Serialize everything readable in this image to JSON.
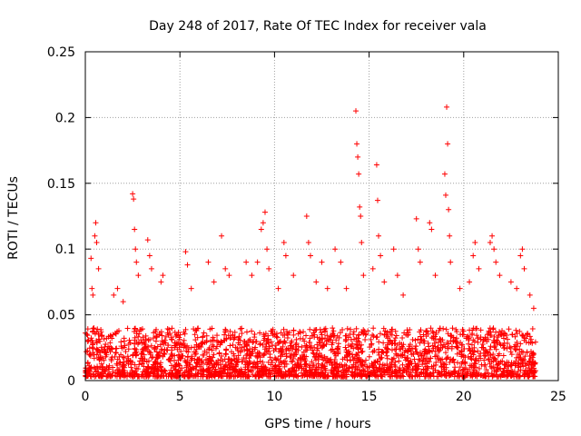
{
  "chart_data": {
    "type": "scatter",
    "title": "Day 248 of 2017, Rate Of TEC Index for receiver vala",
    "xlabel": "GPS time / hours",
    "ylabel": "ROTI / TECUs",
    "xlim": [
      0,
      25
    ],
    "ylim": [
      0,
      0.25
    ],
    "xticks": [
      0,
      5,
      10,
      15,
      20,
      25
    ],
    "yticks": [
      0,
      0.05,
      0.1,
      0.15,
      0.2,
      0.25
    ],
    "xtick_labels": [
      "0",
      "5",
      "10",
      "15",
      "20",
      "25"
    ],
    "ytick_labels": [
      "0",
      "0.05",
      "0.1",
      "0.15",
      "0.2",
      "0.25"
    ],
    "grid": true,
    "marker": "+",
    "series": [
      {
        "name": "ROTI",
        "color": "#ff0000",
        "data_range_hours": [
          0,
          23.8
        ],
        "typical_range": [
          0.003,
          0.04
        ],
        "points": [
          [
            0.3,
            0.093
          ],
          [
            0.35,
            0.07
          ],
          [
            0.4,
            0.065
          ],
          [
            0.5,
            0.11
          ],
          [
            0.55,
            0.12
          ],
          [
            0.6,
            0.105
          ],
          [
            0.7,
            0.085
          ],
          [
            1.5,
            0.065
          ],
          [
            1.7,
            0.07
          ],
          [
            2.0,
            0.06
          ],
          [
            2.5,
            0.142
          ],
          [
            2.55,
            0.138
          ],
          [
            2.6,
            0.115
          ],
          [
            2.65,
            0.1
          ],
          [
            2.7,
            0.09
          ],
          [
            2.8,
            0.08
          ],
          [
            3.3,
            0.107
          ],
          [
            3.4,
            0.095
          ],
          [
            3.5,
            0.085
          ],
          [
            4.0,
            0.075
          ],
          [
            4.1,
            0.08
          ],
          [
            5.3,
            0.098
          ],
          [
            5.4,
            0.088
          ],
          [
            5.6,
            0.07
          ],
          [
            6.5,
            0.09
          ],
          [
            6.8,
            0.075
          ],
          [
            7.2,
            0.11
          ],
          [
            7.4,
            0.085
          ],
          [
            7.6,
            0.08
          ],
          [
            8.5,
            0.09
          ],
          [
            8.8,
            0.08
          ],
          [
            9.1,
            0.09
          ],
          [
            9.3,
            0.115
          ],
          [
            9.4,
            0.12
          ],
          [
            9.5,
            0.128
          ],
          [
            9.6,
            0.1
          ],
          [
            9.7,
            0.085
          ],
          [
            10.2,
            0.07
          ],
          [
            10.5,
            0.105
          ],
          [
            10.6,
            0.095
          ],
          [
            11.0,
            0.08
          ],
          [
            11.7,
            0.125
          ],
          [
            11.8,
            0.105
          ],
          [
            11.9,
            0.095
          ],
          [
            12.2,
            0.075
          ],
          [
            12.5,
            0.09
          ],
          [
            12.8,
            0.07
          ],
          [
            13.2,
            0.1
          ],
          [
            13.5,
            0.09
          ],
          [
            13.8,
            0.07
          ],
          [
            14.3,
            0.205
          ],
          [
            14.35,
            0.18
          ],
          [
            14.4,
            0.17
          ],
          [
            14.45,
            0.157
          ],
          [
            14.5,
            0.132
          ],
          [
            14.55,
            0.125
          ],
          [
            14.6,
            0.105
          ],
          [
            14.7,
            0.08
          ],
          [
            15.2,
            0.085
          ],
          [
            15.4,
            0.164
          ],
          [
            15.45,
            0.137
          ],
          [
            15.5,
            0.11
          ],
          [
            15.6,
            0.095
          ],
          [
            15.8,
            0.075
          ],
          [
            16.3,
            0.1
          ],
          [
            16.5,
            0.08
          ],
          [
            16.8,
            0.065
          ],
          [
            17.5,
            0.123
          ],
          [
            17.6,
            0.1
          ],
          [
            17.7,
            0.09
          ],
          [
            18.2,
            0.12
          ],
          [
            18.3,
            0.115
          ],
          [
            18.5,
            0.08
          ],
          [
            19.0,
            0.157
          ],
          [
            19.05,
            0.141
          ],
          [
            19.1,
            0.208
          ],
          [
            19.15,
            0.18
          ],
          [
            19.2,
            0.13
          ],
          [
            19.25,
            0.11
          ],
          [
            19.3,
            0.09
          ],
          [
            19.8,
            0.07
          ],
          [
            20.3,
            0.075
          ],
          [
            20.5,
            0.095
          ],
          [
            20.6,
            0.105
          ],
          [
            20.8,
            0.085
          ],
          [
            21.4,
            0.105
          ],
          [
            21.5,
            0.11
          ],
          [
            21.6,
            0.1
          ],
          [
            21.7,
            0.09
          ],
          [
            21.9,
            0.08
          ],
          [
            22.5,
            0.075
          ],
          [
            22.8,
            0.07
          ],
          [
            23.0,
            0.095
          ],
          [
            23.1,
            0.1
          ],
          [
            23.2,
            0.085
          ],
          [
            23.5,
            0.065
          ],
          [
            23.7,
            0.055
          ]
        ]
      }
    ]
  }
}
